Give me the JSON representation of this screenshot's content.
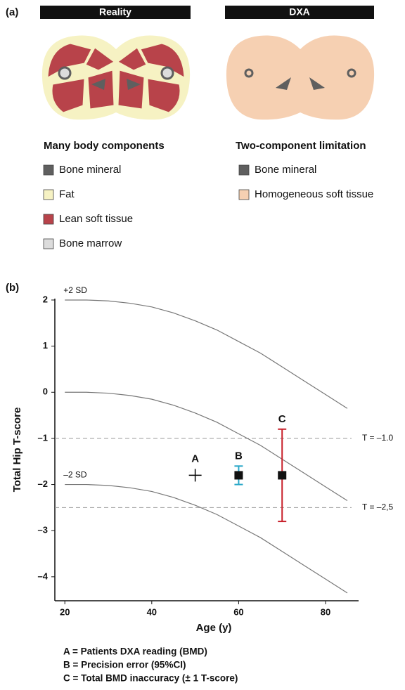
{
  "panel_a": {
    "label": "(a)",
    "left": {
      "header": "Reality",
      "title": "Many body components",
      "legend": [
        {
          "name": "Bone mineral",
          "color": "#5f5f5f"
        },
        {
          "name": "Fat",
          "color": "#f6f2c3"
        },
        {
          "name": "Lean soft tissue",
          "color": "#b8434a"
        },
        {
          "name": "Bone marrow",
          "color": "#dcdcdc"
        }
      ]
    },
    "right": {
      "header": "DXA",
      "title": "Two-component limitation",
      "legend": [
        {
          "name": "Bone mineral",
          "color": "#5f5f5f"
        },
        {
          "name": "Homogeneous soft tissue",
          "color": "#f6d0b2"
        }
      ]
    }
  },
  "chart_data": {
    "type": "line",
    "panel_label": "(b)",
    "xlabel": "Age (y)",
    "ylabel": "Total Hip T-score",
    "x": [
      20,
      25,
      30,
      35,
      40,
      45,
      50,
      55,
      60,
      65,
      70,
      75,
      80,
      85
    ],
    "series": [
      {
        "name": "+2 SD",
        "color": "#777777",
        "values": [
          2,
          2,
          1.98,
          1.93,
          1.85,
          1.72,
          1.55,
          1.35,
          1.1,
          0.85,
          0.55,
          0.25,
          -0.05,
          -0.35
        ]
      },
      {
        "color": "#777777",
        "values": [
          0,
          0,
          -0.02,
          -0.07,
          -0.15,
          -0.28,
          -0.45,
          -0.65,
          -0.9,
          -1.15,
          -1.45,
          -1.75,
          -2.05,
          -2.35
        ]
      },
      {
        "name": "–2 SD",
        "color": "#777777",
        "values": [
          -2,
          -2,
          -2.02,
          -2.07,
          -2.15,
          -2.28,
          -2.45,
          -2.65,
          -2.9,
          -3.15,
          -3.45,
          -3.75,
          -4.05,
          -4.35
        ]
      }
    ],
    "reference_lines": [
      {
        "value": -1,
        "label": "T = –1.0"
      },
      {
        "value": -2.5,
        "label": "T = –2,5"
      }
    ],
    "points": [
      {
        "label": "A",
        "x": 50,
        "y": -1.8,
        "marker": "plus",
        "color": "#000000"
      },
      {
        "label": "B",
        "x": 60,
        "y": -1.8,
        "error": 0.2,
        "marker": "square",
        "color": "#2aa8c8"
      },
      {
        "label": "C",
        "x": 70,
        "y": -1.8,
        "error": 1,
        "marker": "square",
        "color": "#c8202a"
      }
    ],
    "xlim": [
      17.7,
      87.6
    ],
    "ylim": [
      -4.52,
      2.03
    ],
    "xticks": [
      20,
      40,
      60,
      80
    ],
    "yticks": [
      {
        "value": -4,
        "label": "–4"
      },
      {
        "value": -3,
        "label": "–3"
      },
      {
        "value": -2,
        "label": "–2"
      },
      {
        "value": -1,
        "label": "–1"
      },
      0,
      1,
      2
    ],
    "notes": [
      "A = Patients DXA reading (BMD)",
      "B = Precision error (95%CI)",
      "C = Total BMD inaccuracy (± 1 T-score)"
    ]
  }
}
